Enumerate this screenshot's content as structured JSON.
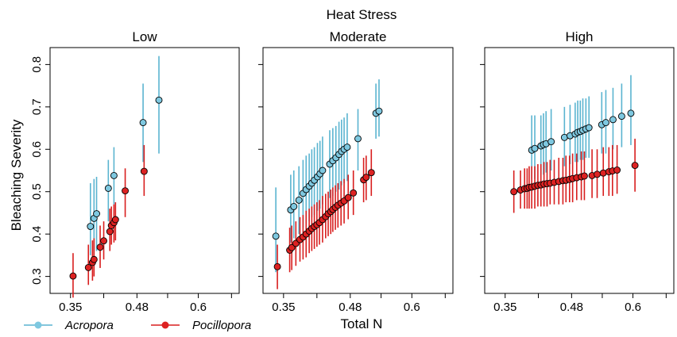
{
  "chart_data": {
    "type": "scatter",
    "title": "Heat Stress",
    "xlabel": "Total N",
    "ylabel": "Bleaching Severity",
    "xlim": [
      0.31,
      0.68
    ],
    "ylim": [
      0.26,
      0.84
    ],
    "x_ticks": [
      0.35,
      0.48,
      0.6
    ],
    "x_tick_labels": [
      "0.35",
      "0.48",
      "0.6"
    ],
    "y_ticks": [
      0.3,
      0.4,
      0.5,
      0.6,
      0.7,
      0.8
    ],
    "y_tick_labels": [
      "0.3",
      "0.4",
      "0.5",
      "0.6",
      "0.7",
      "0.8"
    ],
    "legend": {
      "placement": "bottom-left",
      "items": [
        {
          "name": "Acropora",
          "color": "#5ab4d0",
          "fill": "#7ec8e0"
        },
        {
          "name": "Pocillopora",
          "color": "#d81e1e",
          "fill": "#dd2222"
        }
      ]
    },
    "panels": [
      {
        "label": "Low",
        "series": [
          {
            "name": "Acropora",
            "x": [
              0.389,
              0.396,
              0.401,
              0.424,
              0.435,
              0.492,
              0.523
            ],
            "y": [
              0.418,
              0.437,
              0.448,
              0.508,
              0.538,
              0.663,
              0.716
            ],
            "lo": [
              0.35,
              0.36,
              0.36,
              0.43,
              0.47,
              0.57,
              0.59
            ],
            "hi": [
              0.52,
              0.53,
              0.535,
              0.575,
              0.605,
              0.755,
              0.82
            ]
          },
          {
            "name": "Pocillopora",
            "x": [
              0.355,
              0.385,
              0.393,
              0.396,
              0.408,
              0.415,
              0.427,
              0.43,
              0.435,
              0.438,
              0.457,
              0.494
            ],
            "y": [
              0.301,
              0.321,
              0.333,
              0.34,
              0.369,
              0.384,
              0.406,
              0.42,
              0.427,
              0.434,
              0.502,
              0.548
            ],
            "lo": [
              0.25,
              0.28,
              0.29,
              0.3,
              0.32,
              0.34,
              0.36,
              0.375,
              0.38,
              0.385,
              0.44,
              0.49
            ],
            "hi": [
              0.355,
              0.375,
              0.385,
              0.39,
              0.42,
              0.43,
              0.46,
              0.465,
              0.47,
              0.475,
              0.555,
              0.61
            ]
          }
        ]
      },
      {
        "label": "Moderate",
        "series": [
          {
            "name": "Acropora",
            "x": [
              0.335,
              0.364,
              0.37,
              0.38,
              0.388,
              0.394,
              0.4,
              0.405,
              0.41,
              0.416,
              0.421,
              0.426,
              0.44,
              0.446,
              0.452,
              0.458,
              0.463,
              0.468,
              0.474,
              0.495,
              0.53,
              0.536
            ],
            "y": [
              0.395,
              0.457,
              0.465,
              0.48,
              0.496,
              0.505,
              0.513,
              0.52,
              0.527,
              0.535,
              0.542,
              0.55,
              0.565,
              0.573,
              0.58,
              0.588,
              0.595,
              0.6,
              0.605,
              0.625,
              0.685,
              0.69
            ],
            "lo": [
              0.31,
              0.38,
              0.39,
              0.4,
              0.415,
              0.425,
              0.43,
              0.44,
              0.445,
              0.455,
              0.46,
              0.47,
              0.485,
              0.49,
              0.5,
              0.505,
              0.515,
              0.52,
              0.525,
              0.55,
              0.625,
              0.63
            ],
            "hi": [
              0.51,
              0.54,
              0.55,
              0.56,
              0.575,
              0.585,
              0.59,
              0.6,
              0.605,
              0.615,
              0.62,
              0.63,
              0.645,
              0.65,
              0.655,
              0.665,
              0.67,
              0.675,
              0.685,
              0.695,
              0.755,
              0.765
            ]
          },
          {
            "name": "Pocillopora",
            "x": [
              0.338,
              0.362,
              0.366,
              0.374,
              0.382,
              0.388,
              0.394,
              0.4,
              0.405,
              0.41,
              0.415,
              0.42,
              0.426,
              0.432,
              0.437,
              0.442,
              0.446,
              0.451,
              0.456,
              0.462,
              0.468,
              0.476,
              0.486,
              0.506,
              0.511,
              0.521
            ],
            "y": [
              0.323,
              0.362,
              0.368,
              0.378,
              0.387,
              0.393,
              0.4,
              0.407,
              0.413,
              0.418,
              0.422,
              0.427,
              0.434,
              0.441,
              0.448,
              0.453,
              0.458,
              0.463,
              0.468,
              0.473,
              0.478,
              0.486,
              0.497,
              0.528,
              0.534,
              0.545
            ],
            "lo": [
              0.27,
              0.31,
              0.315,
              0.325,
              0.335,
              0.34,
              0.345,
              0.355,
              0.36,
              0.365,
              0.37,
              0.375,
              0.38,
              0.39,
              0.395,
              0.4,
              0.405,
              0.41,
              0.415,
              0.42,
              0.425,
              0.435,
              0.445,
              0.475,
              0.48,
              0.49
            ],
            "hi": [
              0.375,
              0.415,
              0.42,
              0.43,
              0.44,
              0.445,
              0.455,
              0.46,
              0.465,
              0.47,
              0.475,
              0.48,
              0.49,
              0.495,
              0.5,
              0.505,
              0.51,
              0.515,
              0.52,
              0.525,
              0.53,
              0.54,
              0.55,
              0.58,
              0.585,
              0.6
            ]
          }
        ]
      },
      {
        "label": "High",
        "series": [
          {
            "name": "Acropora",
            "x": [
              0.402,
              0.408,
              0.42,
              0.425,
              0.43,
              0.44,
              0.466,
              0.477,
              0.487,
              0.492,
              0.497,
              0.502,
              0.508,
              0.514,
              0.539,
              0.547,
              0.561,
              0.578,
              0.596
            ],
            "y": [
              0.598,
              0.602,
              0.608,
              0.611,
              0.613,
              0.618,
              0.628,
              0.632,
              0.636,
              0.64,
              0.642,
              0.645,
              0.648,
              0.651,
              0.658,
              0.663,
              0.67,
              0.678,
              0.685
            ],
            "lo": [
              0.53,
              0.53,
              0.54,
              0.54,
              0.545,
              0.55,
              0.56,
              0.565,
              0.57,
              0.57,
              0.575,
              0.575,
              0.58,
              0.58,
              0.59,
              0.59,
              0.6,
              0.605,
              0.61
            ],
            "hi": [
              0.68,
              0.68,
              0.68,
              0.685,
              0.69,
              0.695,
              0.7,
              0.705,
              0.71,
              0.715,
              0.715,
              0.72,
              0.72,
              0.725,
              0.735,
              0.74,
              0.745,
              0.755,
              0.775
            ]
          },
          {
            "name": "Pocillopora",
            "x": [
              0.367,
              0.38,
              0.388,
              0.393,
              0.397,
              0.402,
              0.408,
              0.414,
              0.42,
              0.426,
              0.432,
              0.438,
              0.446,
              0.455,
              0.463,
              0.469,
              0.476,
              0.482,
              0.49,
              0.499,
              0.505,
              0.52,
              0.53,
              0.542,
              0.553,
              0.56,
              0.569,
              0.604
            ],
            "y": [
              0.5,
              0.504,
              0.507,
              0.508,
              0.51,
              0.511,
              0.513,
              0.515,
              0.516,
              0.518,
              0.519,
              0.52,
              0.522,
              0.524,
              0.526,
              0.527,
              0.529,
              0.531,
              0.533,
              0.535,
              0.537,
              0.538,
              0.541,
              0.544,
              0.547,
              0.549,
              0.551,
              0.562
            ],
            "lo": [
              0.45,
              0.46,
              0.46,
              0.46,
              0.46,
              0.46,
              0.46,
              0.465,
              0.465,
              0.465,
              0.465,
              0.47,
              0.47,
              0.47,
              0.47,
              0.475,
              0.475,
              0.475,
              0.48,
              0.48,
              0.48,
              0.485,
              0.485,
              0.49,
              0.49,
              0.49,
              0.495,
              0.5
            ],
            "hi": [
              0.55,
              0.55,
              0.555,
              0.555,
              0.56,
              0.56,
              0.56,
              0.565,
              0.565,
              0.57,
              0.57,
              0.575,
              0.575,
              0.58,
              0.58,
              0.585,
              0.585,
              0.59,
              0.59,
              0.595,
              0.595,
              0.6,
              0.6,
              0.605,
              0.605,
              0.61,
              0.61,
              0.625
            ]
          }
        ]
      }
    ]
  }
}
